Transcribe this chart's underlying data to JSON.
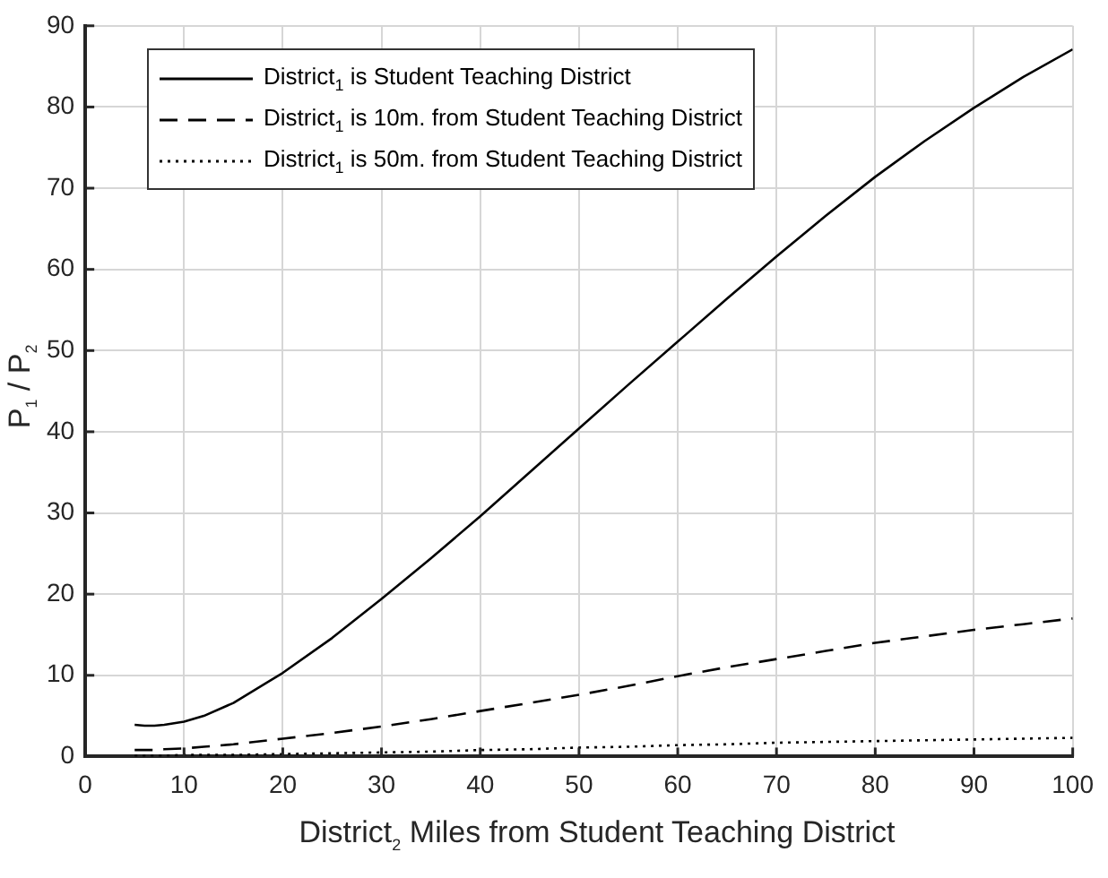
{
  "chart_data": {
    "type": "line",
    "xlabel": "District$_{2}$ Miles from Student Teaching District",
    "ylabel": "P$_{1}$ / P$_{2}$",
    "x": [
      5,
      6,
      7,
      8,
      10,
      12,
      15,
      20,
      25,
      30,
      35,
      40,
      45,
      50,
      55,
      60,
      65,
      70,
      75,
      80,
      85,
      90,
      95,
      100
    ],
    "series": [
      {
        "name": "District$_{1}$ is Student Teaching District",
        "color": "#000000",
        "line_style": "solid",
        "values": [
          3.9,
          3.8,
          3.8,
          3.9,
          4.3,
          5.0,
          6.6,
          10.3,
          14.6,
          19.4,
          24.4,
          29.6,
          35.0,
          40.4,
          45.8,
          51.1,
          56.4,
          61.6,
          66.6,
          71.4,
          75.8,
          79.9,
          83.7,
          87.1
        ]
      },
      {
        "name": "District$_{1}$ is 10m. from Student Teaching District",
        "color": "#000000",
        "line_style": "dashed",
        "values": [
          0.8,
          0.8,
          0.8,
          0.9,
          1.0,
          1.2,
          1.5,
          2.2,
          2.9,
          3.7,
          4.6,
          5.6,
          6.6,
          7.6,
          8.7,
          9.9,
          11.0,
          12.0,
          13.0,
          14.0,
          14.8,
          15.6,
          16.3,
          17.0
        ]
      },
      {
        "name": "District$_{1}$ is 50m. from Student Teaching District",
        "color": "#000000",
        "line_style": "dotted",
        "values": [
          0.1,
          0.1,
          0.1,
          0.1,
          0.2,
          0.2,
          0.2,
          0.3,
          0.4,
          0.5,
          0.6,
          0.8,
          0.9,
          1.1,
          1.2,
          1.4,
          1.5,
          1.7,
          1.8,
          1.9,
          2.0,
          2.1,
          2.2,
          2.3
        ]
      }
    ],
    "xlim": [
      0,
      100
    ],
    "xticks": [
      0,
      10,
      20,
      30,
      40,
      50,
      60,
      70,
      80,
      90,
      100
    ],
    "ylim": [
      0,
      90
    ],
    "yticks": [
      0,
      10,
      20,
      30,
      40,
      50,
      60,
      70,
      80,
      90
    ],
    "grid": true,
    "legend": "top left",
    "marker": "none"
  }
}
